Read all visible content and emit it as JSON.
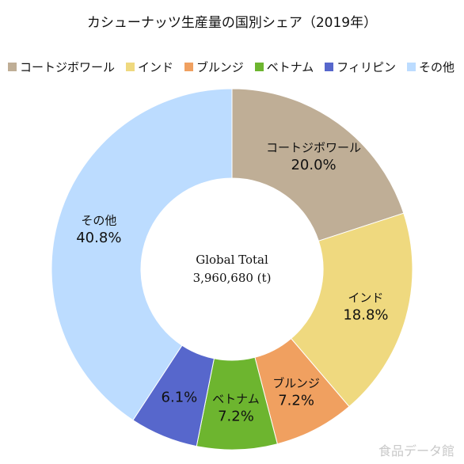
{
  "chart_data": {
    "type": "pie",
    "title": "カシューナッツ生産量の国別シェア（2019年）",
    "center_label": {
      "line1": "Global Total",
      "line2": "3,960,680 (t)"
    },
    "legend_position": "top",
    "slices": [
      {
        "name": "コートジボワール",
        "value": 20.0,
        "label": "20.0%",
        "color": "#bfae96",
        "show_name": true
      },
      {
        "name": "インド",
        "value": 18.8,
        "label": "18.8%",
        "color": "#efd97f",
        "show_name": true
      },
      {
        "name": "ブルンジ",
        "value": 7.2,
        "label": "7.2%",
        "color": "#f0a060",
        "show_name": true
      },
      {
        "name": "ベトナム",
        "value": 7.2,
        "label": "7.2%",
        "color": "#6db52f",
        "show_name": true
      },
      {
        "name": "フィリピン",
        "value": 6.1,
        "label": "6.1%",
        "color": "#5767cc",
        "show_name": false
      },
      {
        "name": "その他",
        "value": 40.8,
        "label": "40.8%",
        "color": "#bcdcff",
        "show_name": true
      }
    ]
  },
  "watermark": "食品データ館"
}
